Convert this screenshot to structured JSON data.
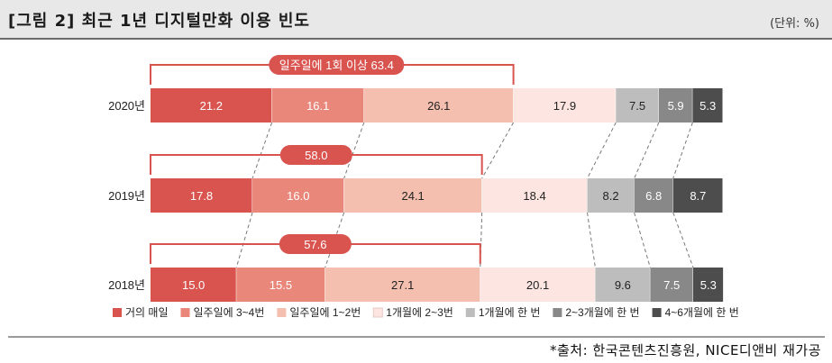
{
  "header": {
    "title": "[그림 2] 최근 1년 디지털만화 이용 빈도",
    "unit": "(단위: %)"
  },
  "footer": {
    "source": "*출처: 한국콘텐츠진흥원, NICE디앤비 재가공"
  },
  "chart_data": {
    "type": "bar",
    "orientation": "horizontal",
    "stacked": true,
    "categories": [
      "2020년",
      "2019년",
      "2018년"
    ],
    "series": [
      {
        "name": "거의 매일",
        "values": [
          21.2,
          17.8,
          15.0
        ],
        "color": "#d9534f",
        "label_color": "#ffffff"
      },
      {
        "name": "일주일에 3~4번",
        "values": [
          16.1,
          16.0,
          15.5
        ],
        "color": "#e8877a",
        "label_color": "#ffffff"
      },
      {
        "name": "일주일에 1~2번",
        "values": [
          26.1,
          24.1,
          27.1
        ],
        "color": "#f4bfae",
        "label_color": "#222222"
      },
      {
        "name": "1개월에 2~3번",
        "values": [
          17.9,
          18.4,
          20.1
        ],
        "color": "#fde6e1",
        "label_color": "#222222"
      },
      {
        "name": "1개월에 한 번",
        "values": [
          7.5,
          8.2,
          9.6
        ],
        "color": "#bdbdbd",
        "label_color": "#222222"
      },
      {
        "name": "2~3개월에 한 번",
        "values": [
          5.9,
          6.8,
          7.5
        ],
        "color": "#888888",
        "label_color": "#ffffff"
      },
      {
        "name": "4~6개월에 한 번",
        "values": [
          5.3,
          8.7,
          5.3
        ],
        "color": "#4d4d4d",
        "label_color": "#ffffff"
      }
    ],
    "annotations": [
      {
        "category": "2020년",
        "text": "일주일에 1회 이상 63.4",
        "covers_series": 3
      },
      {
        "category": "2019년",
        "text": "58.0",
        "covers_series": 3
      },
      {
        "category": "2018년",
        "text": "57.6",
        "covers_series": 3
      }
    ],
    "legend_position": "bottom",
    "connector_lines": "dashed"
  }
}
